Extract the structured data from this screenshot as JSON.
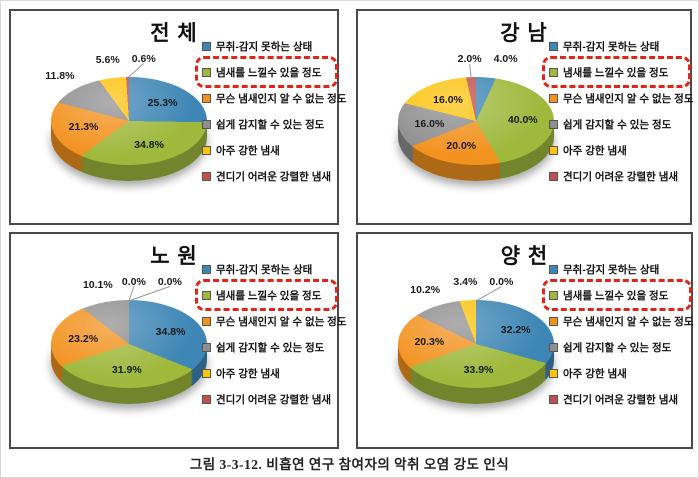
{
  "figure": {
    "caption": "그림 3-3-12. 비흡연 연구 참여자의 악취 오염 강도 인식"
  },
  "legend_labels": [
    "무취-감지 못하는 상태",
    "냄새를 느낄수 있을 정도",
    "무슨 냄새인지 알 수 없는 정도",
    "쉽게 감지할 수 있는 정도",
    "아주 강한 냄새",
    "견디기 어려운 강렬한 냄새"
  ],
  "highlighted_legend_index": 1,
  "colors": {
    "series": [
      "#3E86B5",
      "#9FB93D",
      "#F2921F",
      "#8F8F8F",
      "#FDC30F",
      "#C0504D"
    ],
    "highlight_box": "#E02418",
    "panel_border": "#4A4A4A",
    "leader_line": "#999999",
    "label_text": "#1A1A1A"
  },
  "chart_data": [
    {
      "type": "pie",
      "title": "전 체",
      "legend_position": "right",
      "labels": [
        "무취-감지 못하는 상태",
        "냄새를 느낄수 있을 정도",
        "무슨 냄새인지 알 수 없는 정도",
        "쉽게 감지할 수 있는 정도",
        "아주 강한 냄새",
        "견디기 어려운 강렬한 냄새"
      ],
      "values": [
        25.3,
        34.8,
        21.3,
        11.8,
        5.6,
        0.6
      ],
      "value_suffix": "%"
    },
    {
      "type": "pie",
      "title": "강 남",
      "legend_position": "right",
      "labels": [
        "무취-감지 못하는 상태",
        "냄새를 느낄수 있을 정도",
        "무슨 냄새인지 알 수 없는 정도",
        "쉽게 감지할 수 있는 정도",
        "아주 강한 냄새",
        "견디기 어려운 강렬한 냄새"
      ],
      "values": [
        4.0,
        40.0,
        20.0,
        16.0,
        16.0,
        2.0
      ],
      "value_suffix": "%"
    },
    {
      "type": "pie",
      "title": "노 원",
      "legend_position": "right",
      "labels": [
        "무취-감지 못하는 상태",
        "냄새를 느낄수 있을 정도",
        "무슨 냄새인지 알 수 없는 정도",
        "쉽게 감지할 수 있는 정도",
        "아주 강한 냄새",
        "견디기 어려운 강렬한 냄새"
      ],
      "values": [
        34.8,
        31.9,
        23.2,
        10.1,
        0.0,
        0.0
      ],
      "value_suffix": "%"
    },
    {
      "type": "pie",
      "title": "양 천",
      "legend_position": "right",
      "labels": [
        "무취-감지 못하는 상태",
        "냄새를 느낄수 있을 정도",
        "무슨 냄새인지 알 수 없는 정도",
        "쉽게 감지할 수 있는 정도",
        "아주 강한 냄새",
        "견디기 어려운 강렬한 냄새"
      ],
      "values": [
        32.2,
        33.9,
        20.3,
        10.2,
        3.4,
        0.0
      ],
      "value_suffix": "%"
    }
  ]
}
